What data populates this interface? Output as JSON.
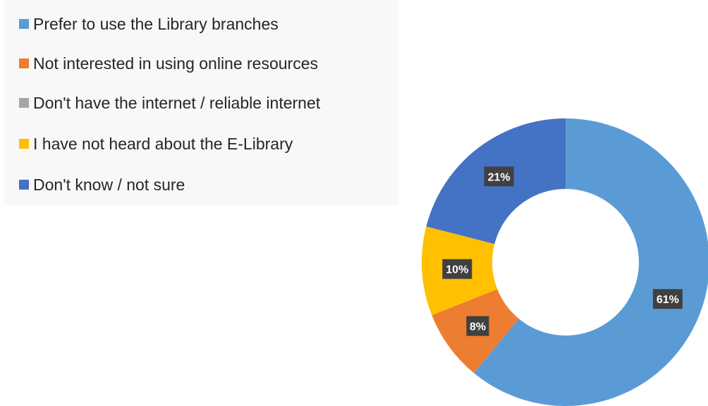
{
  "chart_data": {
    "type": "pie",
    "variant": "doughnut",
    "categories": [
      "Prefer to use the Library branches",
      "Not interested in using online resources",
      "Don't have the internet / reliable internet",
      "I have not heard about the E-Library",
      "Don't know / not sure"
    ],
    "values": [
      61,
      8,
      0,
      10,
      21
    ],
    "data_labels": [
      "61%",
      "8%",
      "",
      "10%",
      "21%"
    ],
    "colors": [
      "#5b9bd5",
      "#ed7d31",
      "#a5a5a5",
      "#ffc000",
      "#4472c4"
    ],
    "legend_position": "top-left",
    "title": ""
  }
}
